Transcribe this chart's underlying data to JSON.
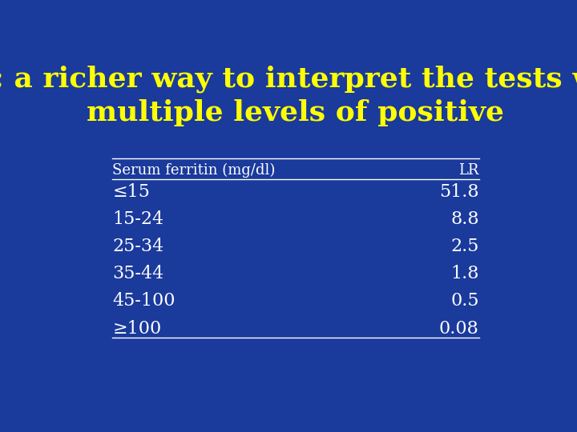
{
  "title_line1": "LR: a richer way to interpret the tests with",
  "title_line2": "multiple levels of positive",
  "title_color": "#FFFF00",
  "background_color": "#1a3a9c",
  "table_text_color": "#ffffff",
  "header_col1": "Serum ferritin (mg/dl)",
  "header_col2": "LR",
  "rows_display": [
    [
      "≤15",
      "51.8"
    ],
    [
      "15-24",
      "8.8"
    ],
    [
      "25-34",
      "2.5"
    ],
    [
      "35-44",
      "1.8"
    ],
    [
      "45-100",
      "0.5"
    ],
    [
      "≥100",
      "0.08"
    ]
  ],
  "title_fontsize": 26,
  "header_fontsize": 13,
  "row_fontsize": 16,
  "line_color": "#ffffff"
}
